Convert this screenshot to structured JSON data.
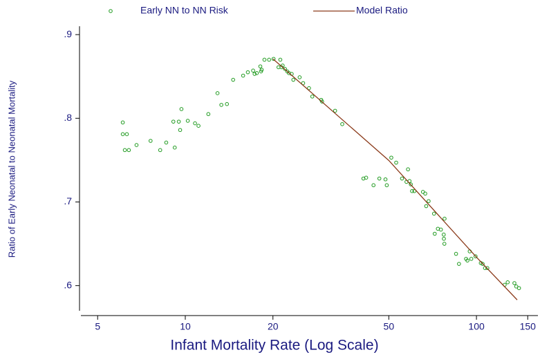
{
  "chart_data": {
    "type": "scatter",
    "x_label": "Infant Mortality Rate (Log Scale)",
    "y_label": "Ratio of Early Neonatal to Neonatal Mortality",
    "xscale": "log",
    "xlim": [
      4.38,
      162.6
    ],
    "xticks": [
      5,
      10,
      20,
      50,
      100,
      150
    ],
    "ylim": [
      0.57,
      0.91
    ],
    "yticks": [
      {
        "value": 0.6,
        "label": ".6"
      },
      {
        "value": 0.7,
        "label": ".7"
      },
      {
        "value": 0.8,
        "label": ".8"
      },
      {
        "value": 0.9,
        "label": ".9"
      }
    ],
    "grid": false,
    "legend": "top",
    "series": [
      {
        "name": "Early NN to NN Risk",
        "type": "scatter",
        "color": "#1f9a1f",
        "x": [
          6.1,
          6.1,
          6.3,
          6.2,
          6.4,
          6.8,
          7.6,
          8.2,
          8.6,
          9.1,
          9.2,
          9.5,
          9.6,
          9.7,
          10.2,
          10.8,
          11.1,
          12.0,
          12.9,
          13.3,
          13.9,
          14.6,
          15.8,
          16.4,
          17.1,
          17.3,
          17.6,
          18.1,
          18.2,
          18.3,
          18.7,
          19.4,
          20.1,
          20.9,
          21.2,
          21.4,
          21.6,
          22.0,
          22.4,
          22.7,
          23.2,
          23.5,
          24.7,
          25.4,
          26.6,
          27.3,
          29.3,
          29.5,
          32.7,
          34.6,
          40.9,
          41.8,
          44.3,
          46.4,
          48.7,
          49.2,
          51.0,
          53.0,
          55.5,
          57.5,
          58.2,
          58.9,
          59.5,
          60.1,
          61.2,
          65.5,
          66.7,
          67.2,
          68.5,
          71.5,
          71.9,
          73.7,
          75.5,
          77.2,
          77.7,
          77.6,
          77.3,
          85.1,
          87.1,
          92.1,
          93.1,
          94.8,
          96.0,
          99.3,
          103.5,
          105.0,
          107.0,
          109.0,
          125.0,
          128.0,
          135.0,
          137.0,
          140.0
        ],
        "values": [
          0.795,
          0.781,
          0.781,
          0.762,
          0.762,
          0.768,
          0.773,
          0.762,
          0.771,
          0.796,
          0.765,
          0.796,
          0.786,
          0.811,
          0.797,
          0.794,
          0.791,
          0.805,
          0.83,
          0.816,
          0.817,
          0.846,
          0.851,
          0.855,
          0.857,
          0.853,
          0.854,
          0.862,
          0.856,
          0.858,
          0.87,
          0.87,
          0.871,
          0.861,
          0.87,
          0.861,
          0.863,
          0.859,
          0.856,
          0.854,
          0.853,
          0.846,
          0.849,
          0.842,
          0.836,
          0.826,
          0.822,
          0.82,
          0.809,
          0.793,
          0.728,
          0.729,
          0.72,
          0.728,
          0.727,
          0.72,
          0.753,
          0.747,
          0.728,
          0.724,
          0.739,
          0.725,
          0.721,
          0.713,
          0.713,
          0.712,
          0.71,
          0.695,
          0.701,
          0.686,
          0.662,
          0.668,
          0.667,
          0.661,
          0.68,
          0.65,
          0.656,
          0.638,
          0.626,
          0.632,
          0.63,
          0.641,
          0.632,
          0.635,
          0.627,
          0.626,
          0.621,
          0.621,
          0.601,
          0.604,
          0.603,
          0.599,
          0.597
        ]
      },
      {
        "name": "Model Ratio",
        "type": "line",
        "color": "#8b3a1a",
        "x": [
          20,
          50,
          100,
          138
        ],
        "values": [
          0.871,
          0.7496,
          0.634,
          0.583
        ]
      }
    ]
  }
}
